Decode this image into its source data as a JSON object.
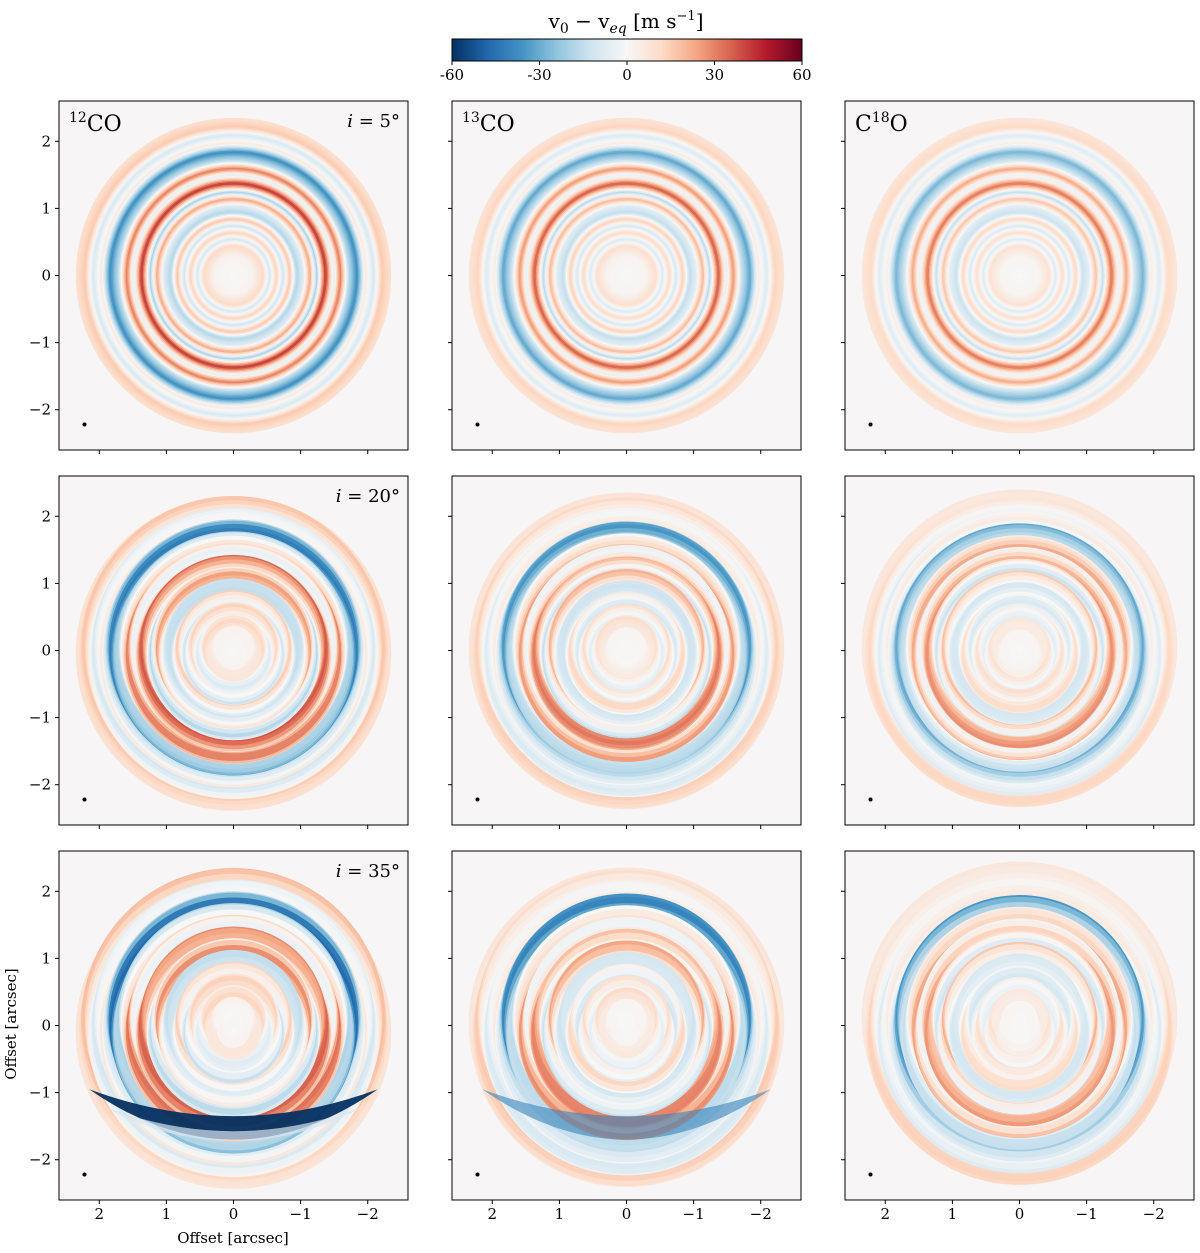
{
  "figure": {
    "colorbar": {
      "label_main": "v",
      "label_sub0": "0",
      "label_minus": " − v",
      "label_subeq": "eq",
      "label_units": " [m s",
      "label_exp": "−1",
      "label_close": "]",
      "ticks": [
        "-60",
        "-30",
        "0",
        "30",
        "60"
      ],
      "range": [
        -60,
        60
      ],
      "colors": [
        "#053061",
        "#2166ac",
        "#4393c3",
        "#92c5de",
        "#d1e5f0",
        "#f7f7f7",
        "#fddbc7",
        "#f4a582",
        "#d6604d",
        "#b2182b",
        "#67001f"
      ]
    },
    "xlabel": "Offset [arcsec]",
    "ylabel": "Offset [arcsec]",
    "column_titles": [
      {
        "sup": "12",
        "base": "CO",
        "pre": ""
      },
      {
        "sup": "13",
        "base": "CO",
        "pre": ""
      },
      {
        "pre": "C",
        "sup": "18",
        "base": "O"
      }
    ],
    "row_inclinations": [
      {
        "var": "i",
        "eq": " = ",
        "value": "5°"
      },
      {
        "var": "i",
        "eq": " = ",
        "value": "20°"
      },
      {
        "var": "i",
        "eq": " = ",
        "value": "35°"
      }
    ]
  },
  "chart_data": {
    "type": "heatmap",
    "quantity": "v0 - veq",
    "units": "m s^-1",
    "color_range": [
      -60,
      60
    ],
    "xlabel": "Offset [arcsec]",
    "ylabel": "Offset [arcsec]",
    "x_ticks": [
      "2",
      "1",
      "0",
      "−1",
      "−2"
    ],
    "y_ticks": [
      "2",
      "1",
      "0",
      "−1",
      "−2"
    ],
    "xlim": [
      2.6,
      -2.6
    ],
    "ylim": [
      -2.6,
      2.6
    ],
    "disk_radius_arcsec": 2.35,
    "columns": [
      "12CO",
      "13CO",
      "C18O"
    ],
    "rows": [
      "i = 5°",
      "i = 20°",
      "i = 35°"
    ],
    "ring_profile": [
      {
        "r": 0.0,
        "v": 0
      },
      {
        "r": 0.3,
        "v": 2
      },
      {
        "r": 0.45,
        "v": 12
      },
      {
        "r": 0.55,
        "v": -10
      },
      {
        "r": 0.65,
        "v": 14
      },
      {
        "r": 0.75,
        "v": -12
      },
      {
        "r": 0.85,
        "v": 18
      },
      {
        "r": 0.95,
        "v": -18
      },
      {
        "r": 1.05,
        "v": -8
      },
      {
        "r": 1.15,
        "v": 24
      },
      {
        "r": 1.25,
        "v": -20
      },
      {
        "r": 1.38,
        "v": 45
      },
      {
        "r": 1.5,
        "v": -8
      },
      {
        "r": 1.6,
        "v": 32
      },
      {
        "r": 1.72,
        "v": -14
      },
      {
        "r": 1.85,
        "v": -38
      },
      {
        "r": 1.98,
        "v": 6
      },
      {
        "r": 2.1,
        "v": -10
      },
      {
        "r": 2.22,
        "v": 16
      },
      {
        "r": 2.35,
        "v": 10
      }
    ],
    "column_amplitude": [
      1.0,
      0.85,
      0.75
    ],
    "bottom_arc_minimum": {
      "i = 35°, 12CO": -60,
      "i = 35°, 13CO": -40
    }
  }
}
